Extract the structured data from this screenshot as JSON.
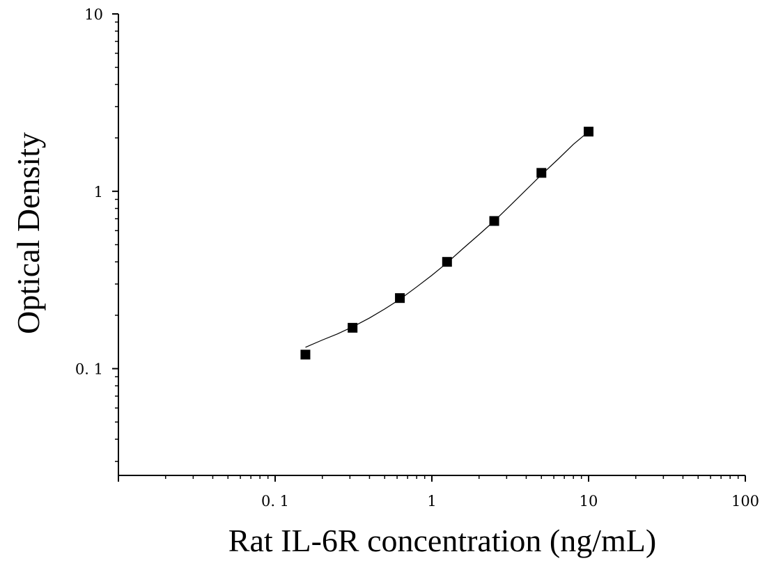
{
  "chart_data": {
    "type": "scatter",
    "xlabel": "Rat IL-6R concentration (ng/mL)",
    "ylabel": "Optical Density",
    "xscale": "log",
    "yscale": "log",
    "xlim": [
      0.01,
      100
    ],
    "ylim": [
      0.025,
      10
    ],
    "xticks": [
      {
        "value": 0.1,
        "label": "0. 1"
      },
      {
        "value": 1,
        "label": "1"
      },
      {
        "value": 10,
        "label": "10"
      },
      {
        "value": 100,
        "label": "100"
      }
    ],
    "yticks": [
      {
        "value": 0.1,
        "label": "0. 1"
      },
      {
        "value": 1,
        "label": "1"
      },
      {
        "value": 10,
        "label": "10"
      }
    ],
    "grid": false,
    "series": [
      {
        "marker": "square",
        "color": "#000000",
        "x": [
          0.156,
          0.312,
          0.625,
          1.25,
          2.5,
          5,
          10
        ],
        "y": [
          0.12,
          0.17,
          0.25,
          0.4,
          0.68,
          1.27,
          2.17
        ]
      }
    ],
    "fit_curve": {
      "color": "#000000",
      "x": [
        0.156,
        0.2,
        0.25,
        0.312,
        0.4,
        0.5,
        0.625,
        0.8,
        1.0,
        1.25,
        1.6,
        2.0,
        2.5,
        3.2,
        4.0,
        5.0,
        6.4,
        8.0,
        10.0
      ],
      "y": [
        0.132,
        0.145,
        0.157,
        0.172,
        0.193,
        0.217,
        0.246,
        0.289,
        0.336,
        0.395,
        0.48,
        0.57,
        0.68,
        0.84,
        1.02,
        1.24,
        1.52,
        1.84,
        2.17
      ]
    }
  }
}
